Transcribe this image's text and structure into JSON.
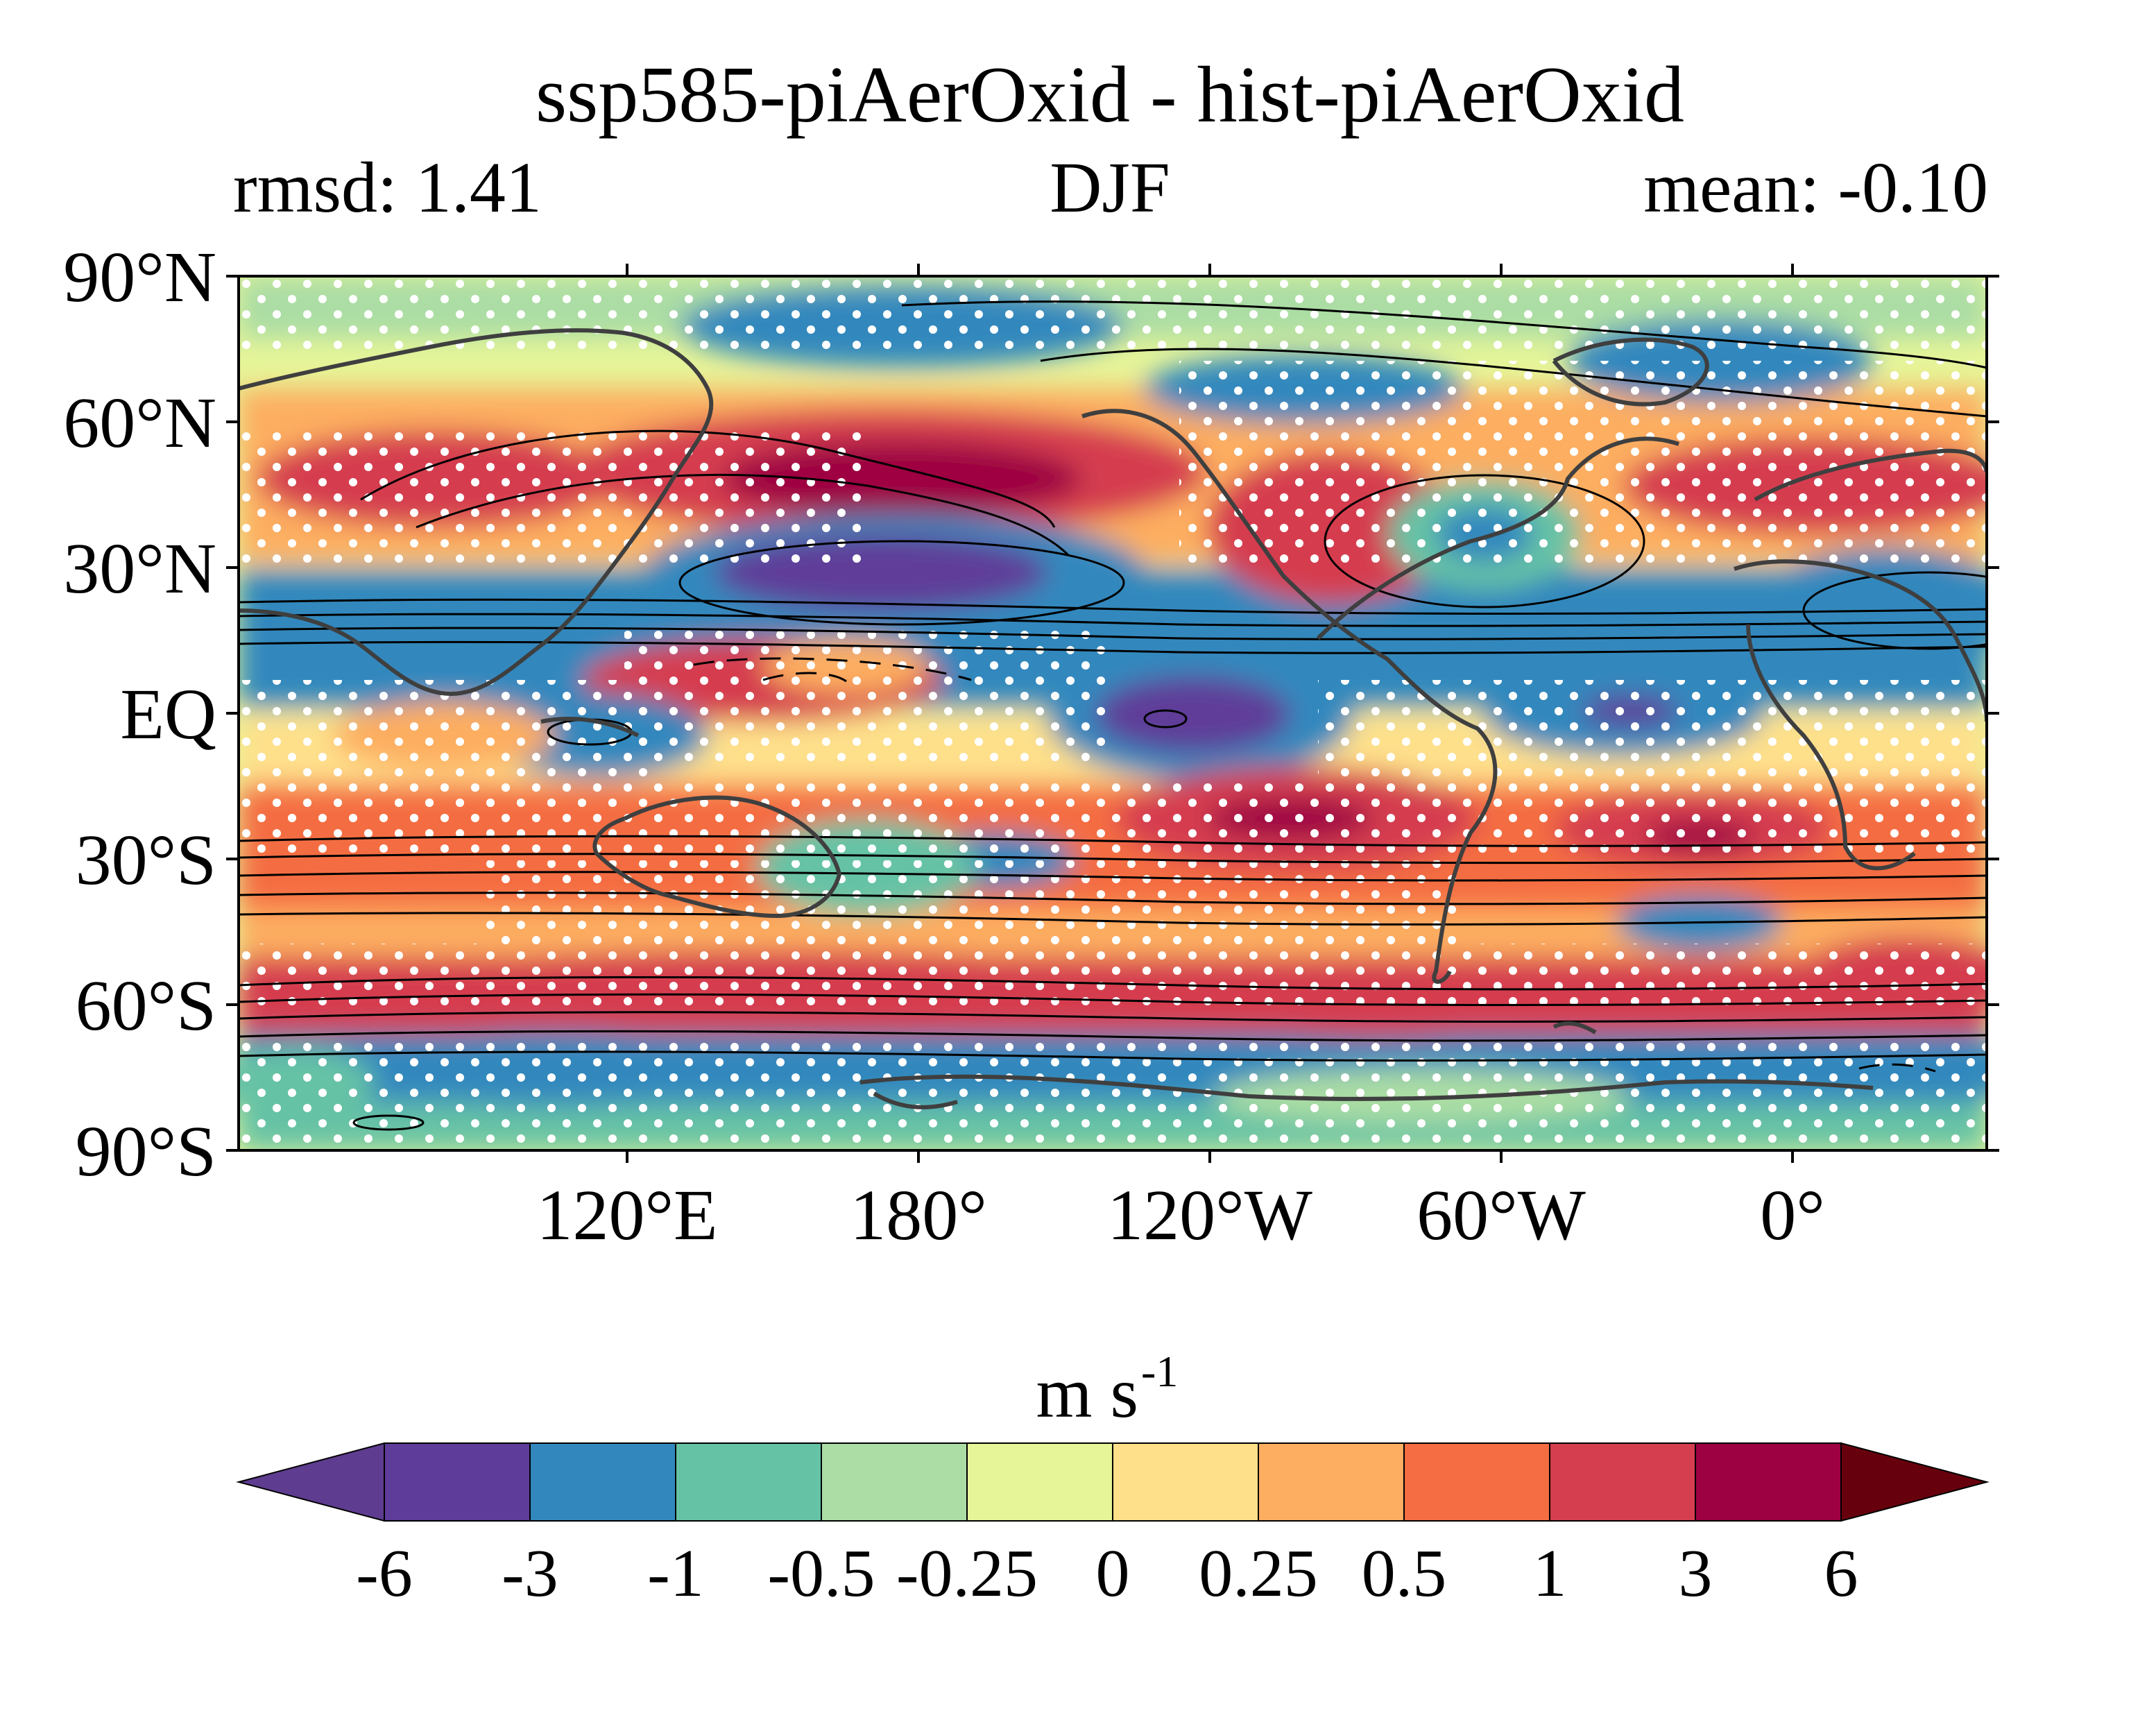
{
  "title": "ssp585-piAerOxid - hist-piAerOxid",
  "subtitle": {
    "left": "rmsd: 1.41",
    "center": "DJF",
    "right": "mean: -0.10"
  },
  "map": {
    "projection": "plate-carree",
    "central_longitude": 180,
    "lat_ticks": [
      "90°N",
      "60°N",
      "30°N",
      "EQ",
      "30°S",
      "60°S",
      "90°S"
    ],
    "lon_ticks": [
      "120°E",
      "180°",
      "120°W",
      "60°W",
      "0°"
    ],
    "lat_tick_values": [
      90,
      60,
      30,
      0,
      -30,
      -60,
      -90
    ],
    "lon_tick_values": [
      120,
      180,
      240,
      300,
      360
    ],
    "lon_range": [
      40,
      400
    ],
    "stippling": "white dots",
    "contours": "black lines"
  },
  "colorbar": {
    "unit_base": "m s",
    "unit_exp": "-1",
    "tick_labels": [
      "-6",
      "-3",
      "-1",
      "-0.5",
      "-0.25",
      "0",
      "0.25",
      "0.5",
      "1",
      "3",
      "6"
    ],
    "colors": [
      "#5e3c99",
      "#3288bd",
      "#66c2a5",
      "#abdda4",
      "#e6f598",
      "#fee08b",
      "#fdae61",
      "#f46d43",
      "#d53e4f",
      "#9e0142"
    ],
    "under_color": "#5e3c8f",
    "over_color": "#67000d"
  }
}
